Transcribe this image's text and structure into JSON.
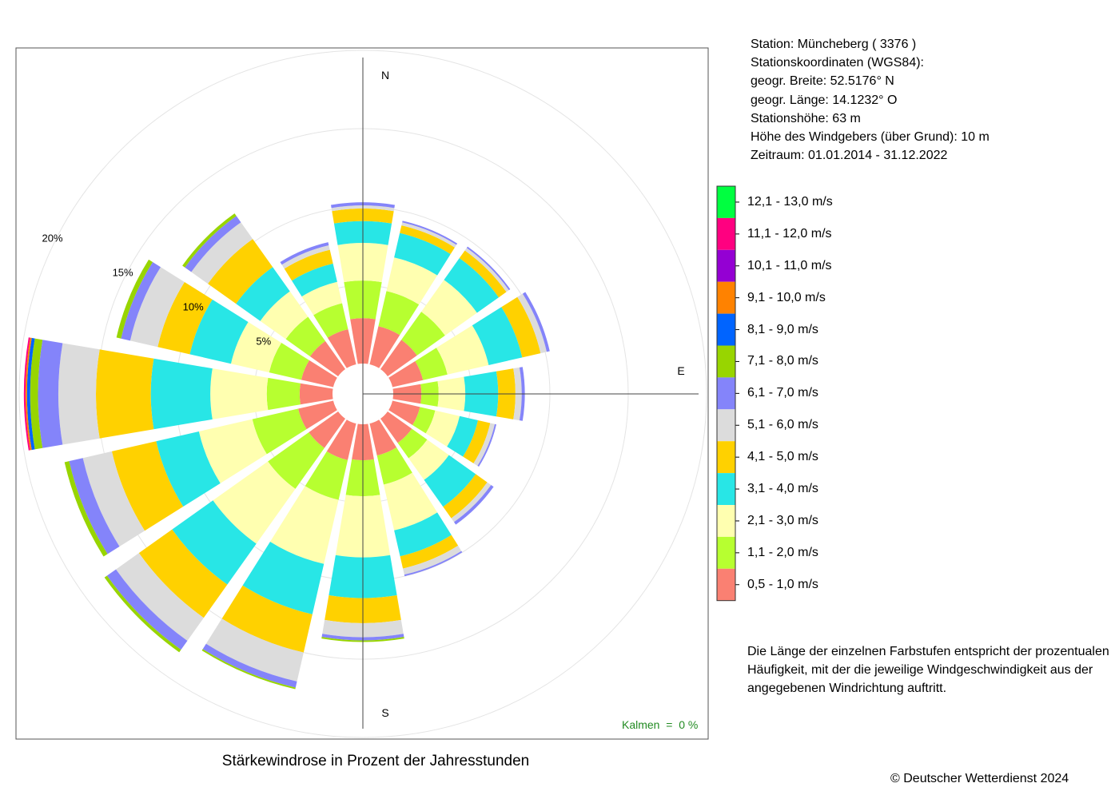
{
  "station": {
    "line1": "Station:  Müncheberg  ( 3376 )",
    "line2": "Stationskoordinaten (WGS84):",
    "line3": "geogr. Breite: 52.5176° N",
    "line4": "geogr. Länge: 14.1232° O",
    "line5": "Stationshöhe: 63 m",
    "line6": "Höhe des Windgebers (über Grund): 10 m",
    "line7": "Zeitraum: 01.01.2014 - 31.12.2022"
  },
  "note": "Die Länge der einzelnen Farbstufen entspricht der prozentualen Häufigkeit, mit der die jeweilige Windgeschwindigkeit aus der angegebenen Windrichtung auftritt.",
  "caption": "Stärkewindrose in Prozent der Jahresstunden",
  "copyright": "© Deutscher Wetterdienst  2024",
  "calm": "Kalmen  =  0 %",
  "chart_data": {
    "type": "wind-rose",
    "title": "Stärkewindrose in Prozent der Jahresstunden",
    "directions": [
      "N",
      "NNE",
      "NE",
      "ENE",
      "E",
      "ESE",
      "SE",
      "SSE",
      "S",
      "SSW",
      "SW",
      "WSW",
      "W",
      "WNW",
      "NW",
      "NNW"
    ],
    "direction_labels": [
      "N",
      "E",
      "S"
    ],
    "radial_ticks": [
      "5%",
      "10%",
      "15%",
      "20%"
    ],
    "radial_tick_values": [
      5,
      10,
      15,
      20
    ],
    "calm_percent": 0,
    "classes": [
      {
        "label": "0,5 - 1,0 m/s",
        "color": "#fa8072"
      },
      {
        "label": "1,1 - 2,0 m/s",
        "color": "#b7ff30"
      },
      {
        "label": "2,1 - 3,0 m/s",
        "color": "#ffffb0"
      },
      {
        "label": "3,1 - 4,0 m/s",
        "color": "#28e6e6"
      },
      {
        "label": "4,1 - 5,0 m/s",
        "color": "#ffd100"
      },
      {
        "label": "5,1 - 6,0 m/s",
        "color": "#dcdcdc"
      },
      {
        "label": "6,1 - 7,0 m/s",
        "color": "#8484fa"
      },
      {
        "label": "7,1 - 8,0 m/s",
        "color": "#98d500"
      },
      {
        "label": "8,1 - 9,0 m/s",
        "color": "#0064ff"
      },
      {
        "label": "9,1 - 10,0 m/s",
        "color": "#ff8200"
      },
      {
        "label": "10,1 - 11,0 m/s",
        "color": "#9400d3"
      },
      {
        "label": "11,1 - 12,0 m/s",
        "color": "#ff0080"
      },
      {
        "label": "12,1 - 13,0 m/s",
        "color": "#00ff40"
      }
    ],
    "cumulative_percent": [
      [
        2.9,
        5.3,
        7.7,
        9.1,
        9.9,
        10.1,
        10.3,
        10.3,
        10.3,
        10.3,
        10.3,
        10.3,
        10.3
      ],
      [
        2.5,
        4.8,
        7.0,
        8.6,
        9.1,
        9.3,
        9.4,
        9.4,
        9.4,
        9.4,
        9.4,
        9.4,
        9.4
      ],
      [
        2.3,
        4.5,
        7.0,
        8.7,
        9.3,
        9.5,
        9.6,
        9.6,
        9.6,
        9.6,
        9.6,
        9.6,
        9.6
      ],
      [
        2.0,
        3.6,
        6.3,
        8.5,
        9.7,
        10.1,
        10.3,
        10.3,
        10.3,
        10.3,
        10.3,
        10.3,
        10.3
      ],
      [
        1.8,
        2.9,
        4.6,
        6.7,
        7.8,
        8.2,
        8.4,
        8.4,
        8.4,
        8.4,
        8.4,
        8.4,
        8.4
      ],
      [
        1.8,
        2.8,
        4.4,
        5.6,
        6.4,
        6.7,
        6.8,
        6.8,
        6.8,
        6.8,
        6.8,
        6.8,
        6.8
      ],
      [
        1.9,
        3.1,
        4.8,
        6.9,
        7.8,
        8.1,
        8.3,
        8.3,
        8.3,
        8.3,
        8.3,
        8.3,
        8.3
      ],
      [
        2.1,
        4.0,
        7.0,
        8.7,
        9.5,
        9.9,
        10.0,
        10.0,
        10.0,
        10.0,
        10.0,
        10.0,
        10.0
      ],
      [
        2.3,
        4.6,
        8.5,
        11.1,
        12.7,
        13.6,
        13.8,
        13.9,
        13.9,
        13.9,
        13.9,
        13.9,
        13.9
      ],
      [
        2.4,
        5.0,
        9.2,
        12.5,
        15.0,
        16.9,
        17.3,
        17.4,
        17.4,
        17.4,
        17.4,
        17.4,
        17.4
      ],
      [
        2.3,
        5.5,
        9.8,
        13.0,
        15.6,
        17.4,
        18.1,
        18.3,
        18.3,
        18.3,
        18.3,
        18.3,
        18.3
      ],
      [
        2.3,
        5.3,
        8.8,
        11.6,
        14.5,
        16.4,
        17.3,
        17.6,
        17.6,
        17.6,
        17.6,
        17.6,
        17.6
      ],
      [
        2.1,
        4.2,
        7.8,
        11.6,
        15.1,
        17.5,
        18.8,
        19.3,
        19.5,
        19.6,
        19.6,
        19.7,
        19.7
      ],
      [
        2.1,
        4.2,
        6.7,
        9.4,
        11.5,
        13.3,
        13.9,
        14.2,
        14.2,
        14.2,
        14.2,
        14.2,
        14.2
      ],
      [
        2.2,
        4.1,
        6.1,
        8.0,
        10.2,
        11.5,
        12.0,
        12.2,
        12.2,
        12.2,
        12.2,
        12.2,
        12.2
      ],
      [
        2.3,
        4.0,
        5.4,
        6.6,
        7.5,
        7.8,
        8.0,
        8.0,
        8.0,
        8.0,
        8.0,
        8.0,
        8.0
      ]
    ]
  }
}
